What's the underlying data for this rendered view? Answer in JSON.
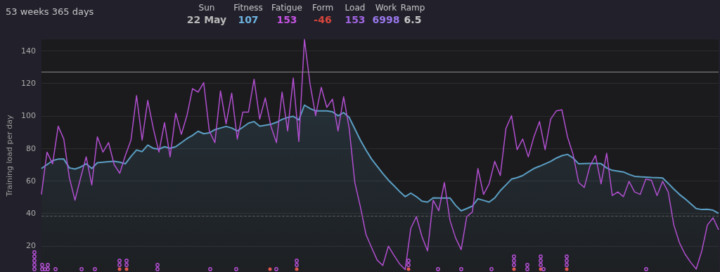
{
  "chart_data": {
    "type": "line",
    "ylabel": "Training load per day",
    "annotations": [
      "53 weeks 365 days",
      "Sun",
      "22 May",
      "Fitness",
      "107",
      "Fatigue",
      "153",
      "Form",
      "-46",
      "Load",
      "153",
      "Work",
      "6998",
      "Ramp",
      "6.5"
    ],
    "categories": [
      null,
      null,
      null,
      null,
      null,
      null,
      null,
      null,
      null,
      null,
      null,
      null,
      null,
      null,
      null,
      null,
      null,
      null,
      null,
      null,
      null,
      null,
      null,
      null,
      null,
      null,
      null,
      null,
      null,
      null,
      null,
      null,
      null,
      null,
      null,
      null,
      null,
      null,
      null,
      null,
      null,
      null,
      null,
      null,
      null,
      null,
      null,
      null,
      null,
      null,
      null,
      null,
      null,
      null,
      null,
      null,
      null,
      null,
      null,
      null,
      null,
      null,
      null,
      null,
      null,
      null,
      null,
      null,
      null,
      null,
      null,
      null,
      null,
      null,
      null,
      null,
      null,
      null,
      null,
      null,
      null,
      null,
      null,
      null,
      null,
      null,
      null,
      null,
      null,
      null,
      null,
      null,
      null,
      null,
      null,
      null,
      null,
      null,
      null,
      null,
      null,
      null,
      null,
      null,
      null,
      null,
      null,
      null,
      null,
      null,
      null,
      null,
      null,
      null,
      null,
      null,
      null,
      null,
      null,
      null,
      null,
      null
    ],
    "ylim": [
      4,
      147
    ],
    "yticks": [
      20,
      40,
      60,
      80,
      100,
      120,
      140
    ],
    "grid": "y",
    "tick_labels": "y",
    "ref_lines": [
      {
        "axis": "y",
        "value": 127,
        "color": "#8a8a8a",
        "line_style": "solid"
      },
      {
        "axis": "y",
        "value": 38.5,
        "color": "#5a5a5a",
        "line_style": "dashed"
      }
    ],
    "series": [
      {
        "type": "area",
        "color": "#5b9fc4",
        "values": [
          67.6,
          70,
          72.5,
          73.4,
          73.4,
          68,
          67.3,
          68.5,
          70.5,
          67.6,
          71.2,
          71.5,
          71.8,
          72,
          71.5,
          70.5,
          75,
          79,
          78,
          82,
          80,
          79.5,
          81,
          80,
          81,
          83.5,
          86,
          88,
          90.5,
          89,
          89.5,
          91.5,
          92.5,
          93.5,
          92.5,
          90.7,
          93,
          95.5,
          96.5,
          93.6,
          94.2,
          94.8,
          96,
          97.8,
          99,
          99.7,
          97.5,
          106.6,
          104.5,
          103,
          103,
          103,
          102.5,
          100,
          102,
          99,
          92,
          85,
          79,
          73.4,
          69,
          64.5,
          60.5,
          57,
          53.5,
          50.3,
          52.5,
          50.3,
          47.5,
          47,
          49.6,
          49.5,
          49.5,
          49.5,
          45,
          41.6,
          43,
          44.5,
          49,
          48,
          47,
          49.5,
          54,
          57.5,
          61.1,
          62,
          63.3,
          65.5,
          67.6,
          69,
          70.5,
          72,
          74,
          75.5,
          76.3,
          74.1,
          70.5,
          70.6,
          70.7,
          70.8,
          70.6,
          68,
          66.5,
          66,
          65.5,
          64,
          62.8,
          62.5,
          62.3,
          62.1,
          62,
          61.8,
          58.5,
          55,
          51.7,
          49,
          46,
          43,
          42.4,
          42.6,
          42,
          40
        ]
      },
      {
        "type": "line",
        "color": "#b14fd0",
        "values": [
          51.7,
          77.7,
          70.5,
          93.6,
          85.7,
          61.8,
          48.1,
          61.8,
          74.8,
          57.5,
          87.1,
          77.7,
          83.5,
          70,
          64.7,
          75.6,
          85,
          112.4,
          85,
          109.5,
          92.2,
          77.7,
          95.8,
          74.8,
          101.6,
          88.6,
          100.1,
          116.7,
          114.6,
          120.4,
          90.7,
          83.5,
          115.3,
          95,
          113.9,
          85.7,
          102.3,
          102.3,
          122.5,
          98,
          111,
          93.6,
          83.5,
          114.6,
          90.7,
          123.2,
          84.2,
          147,
          119.6,
          100.1,
          117.5,
          105.2,
          110.2,
          90.7,
          111.7,
          92.2,
          59,
          44,
          27,
          19,
          11.3,
          8,
          19.9,
          14.2,
          9,
          5.5,
          30.8,
          38,
          25.7,
          17,
          48.1,
          41.6,
          59,
          35.8,
          25,
          17.8,
          38,
          40.9,
          67.6,
          51.7,
          58.2,
          72,
          63.3,
          92.2,
          100.1,
          79.2,
          85.7,
          74.8,
          87.1,
          96.5,
          79.2,
          98,
          103,
          103.7,
          87.1,
          76.3,
          59,
          56,
          69,
          75.6,
          58.2,
          77,
          51,
          53.2,
          50.3,
          59.7,
          53.2,
          51.7,
          61.1,
          60.4,
          51,
          59.7,
          53.2,
          32.9,
          22,
          15,
          10,
          5.8,
          17,
          32.9,
          37.3,
          30
        ]
      }
    ]
  }
}
